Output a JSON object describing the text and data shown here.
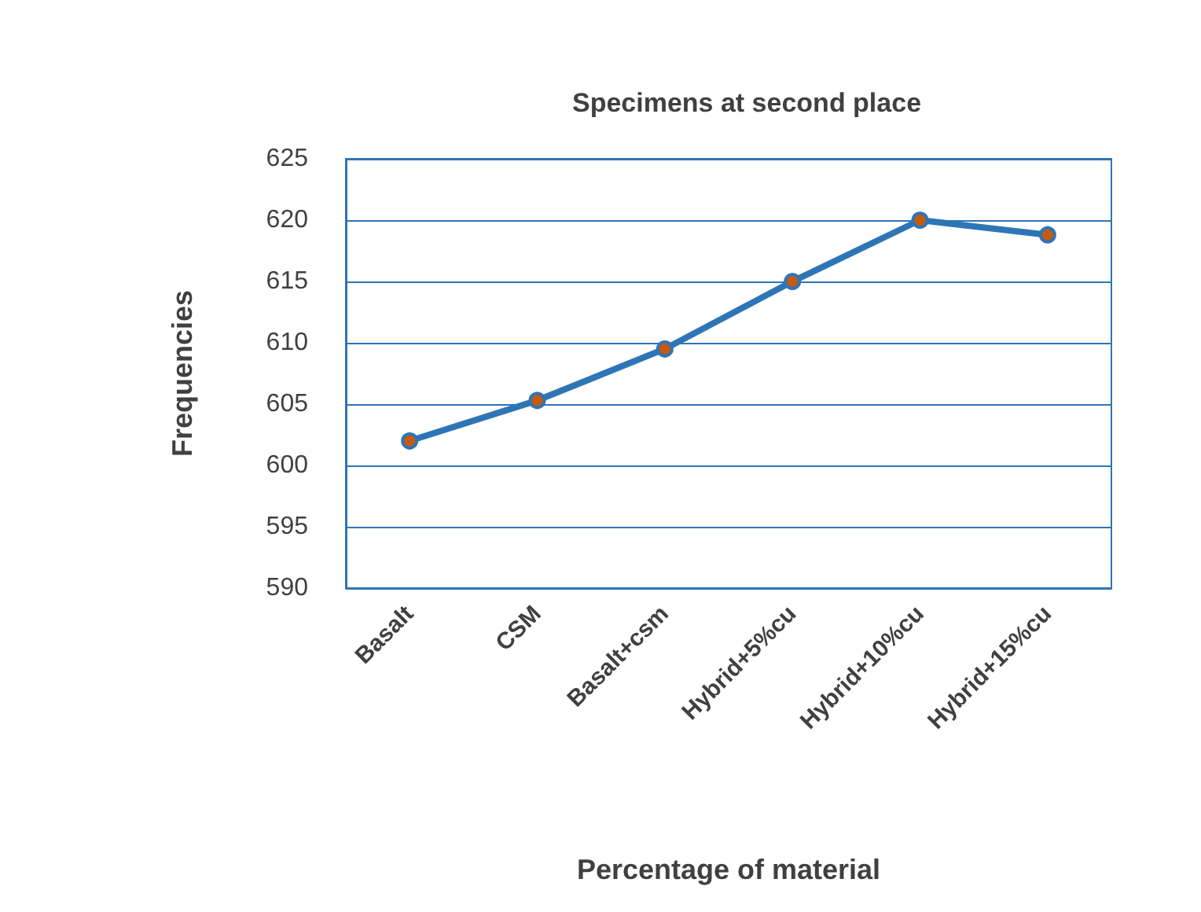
{
  "chart_data": {
    "type": "line",
    "title": "Specimens at second place",
    "xlabel": "Percentage of material",
    "ylabel": "Frequencies",
    "categories": [
      "Basalt",
      "CSM",
      "Basalt+csm",
      "Hybrid+5%cu",
      "Hybrid+10%cu",
      "Hybrid+15%cu"
    ],
    "series": [
      {
        "color": "#2e75b6",
        "values": [
          602,
          605.3,
          609.5,
          615,
          620,
          618.8
        ]
      }
    ],
    "ylim": [
      590,
      625
    ],
    "yticks": [
      590,
      595,
      600,
      605,
      610,
      615,
      620,
      625
    ],
    "grid": "y",
    "marker": "circle",
    "line_style": "solid"
  }
}
